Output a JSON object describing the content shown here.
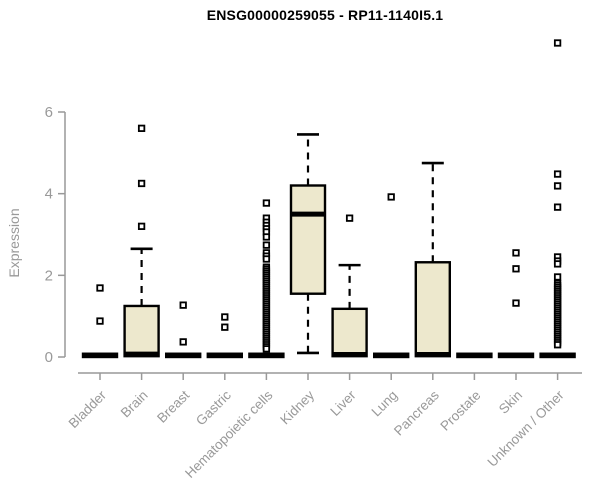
{
  "page": {
    "title": "ENSG00000259055 - RP11-1140I5.1"
  },
  "chart_data": {
    "type": "box",
    "title": "ENSG00000259055 - RP11-1140I5.1",
    "xlabel": "",
    "ylabel": "Expression",
    "yticks": [
      0,
      2,
      4,
      6
    ],
    "ylim": [
      0,
      6
    ],
    "grid": false,
    "legend": "none",
    "colors": {
      "box_fill": "#EDE8CD",
      "box_stroke": "#000000",
      "median": "#000000",
      "whisker": "#000000",
      "outlier_stroke": "#000000",
      "outlier_fill": "#ffffff",
      "axis": "#999999",
      "title": "#000000"
    },
    "categories": [
      {
        "label": "Bladder",
        "q1": 0,
        "median": 0.04,
        "q3": 0.08,
        "whisker_low": null,
        "whisker_high": null,
        "outliers": [
          0.88,
          1.69
        ]
      },
      {
        "label": "Brain",
        "q1": 0.02,
        "median": 0.07,
        "q3": 1.25,
        "whisker_low": null,
        "whisker_high": 2.65,
        "outliers": [
          3.2,
          4.25,
          5.6
        ]
      },
      {
        "label": "Breast",
        "q1": 0,
        "median": 0.04,
        "q3": 0.08,
        "whisker_low": null,
        "whisker_high": null,
        "outliers": [
          0.37,
          1.27
        ]
      },
      {
        "label": "Gastric",
        "q1": 0,
        "median": 0.04,
        "q3": 0.08,
        "whisker_low": null,
        "whisker_high": null,
        "outliers": [
          0.73,
          0.98
        ]
      },
      {
        "label": "Hematopoietic cells",
        "q1": 0,
        "median": 0.04,
        "q3": 0.08,
        "whisker_low": null,
        "whisker_high": null,
        "outliers": [
          3.77,
          3.4,
          3.3,
          3.22,
          3.14,
          3.06,
          2.94,
          2.74,
          2.55,
          2.47,
          2.4,
          2.2,
          2.15,
          2.1,
          2.05,
          2.0,
          1.95,
          1.9,
          1.85,
          1.8,
          1.75,
          1.7,
          1.65,
          1.6,
          1.55,
          1.5,
          1.45,
          1.4,
          1.35,
          1.3,
          1.25,
          1.2,
          1.15,
          1.1,
          1.05,
          1.0,
          0.95,
          0.9,
          0.85,
          0.8,
          0.75,
          0.7,
          0.65,
          0.6,
          0.55,
          0.5,
          0.45,
          0.4,
          0.35,
          0.3,
          0.25,
          0.2
        ]
      },
      {
        "label": "Kidney",
        "q1": 1.55,
        "median": 3.5,
        "q3": 4.2,
        "whisker_low": 0.1,
        "whisker_high": 5.45,
        "outliers": []
      },
      {
        "label": "Liver",
        "q1": 0.02,
        "median": 0.06,
        "q3": 1.18,
        "whisker_low": null,
        "whisker_high": 2.25,
        "outliers": [
          3.4
        ]
      },
      {
        "label": "Lung",
        "q1": 0,
        "median": 0.04,
        "q3": 0.08,
        "whisker_low": null,
        "whisker_high": null,
        "outliers": [
          3.92
        ]
      },
      {
        "label": "Pancreas",
        "q1": 0.02,
        "median": 0.06,
        "q3": 2.32,
        "whisker_low": null,
        "whisker_high": 4.75,
        "outliers": []
      },
      {
        "label": "Prostate",
        "q1": 0,
        "median": 0.04,
        "q3": 0.08,
        "whisker_low": null,
        "whisker_high": null,
        "outliers": []
      },
      {
        "label": "Skin",
        "q1": 0,
        "median": 0.04,
        "q3": 0.08,
        "whisker_low": null,
        "whisker_high": null,
        "outliers": [
          1.32,
          2.16,
          2.55
        ]
      },
      {
        "label": "Unknown / Other",
        "q1": 0,
        "median": 0.04,
        "q3": 0.08,
        "whisker_low": null,
        "whisker_high": null,
        "outliers": [
          7.69,
          4.48,
          4.19,
          3.67,
          2.45,
          2.35,
          2.28,
          1.96,
          1.8,
          1.75,
          1.7,
          1.65,
          1.6,
          1.55,
          1.5,
          1.45,
          1.4,
          1.35,
          1.3,
          1.25,
          1.2,
          1.15,
          1.1,
          1.05,
          1.0,
          0.95,
          0.9,
          0.85,
          0.8,
          0.75,
          0.7,
          0.65,
          0.6,
          0.55,
          0.5,
          0.45,
          0.4,
          0.35,
          0.3
        ]
      }
    ]
  }
}
